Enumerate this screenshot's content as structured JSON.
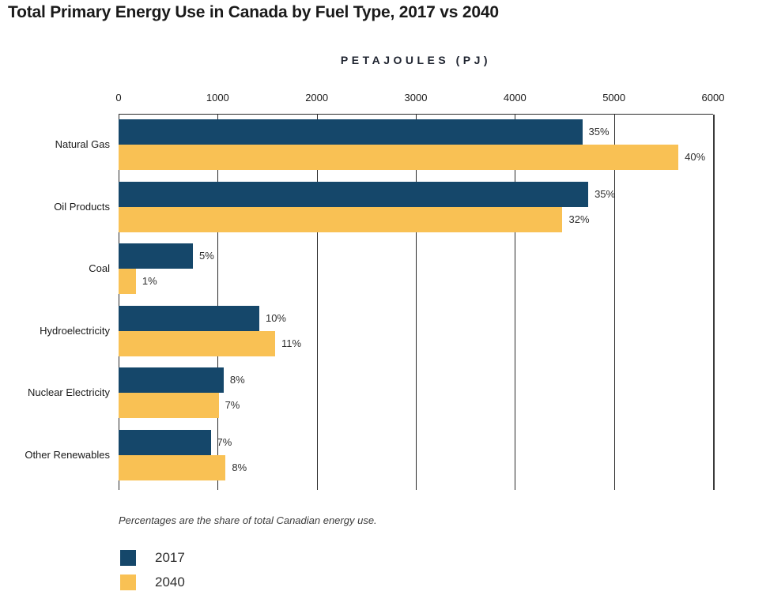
{
  "chart": {
    "title": "Total Primary Energy Use in Canada by Fuel Type, 2017 vs 2040",
    "axis_title": "PETAJOULES (PJ)",
    "footnote": "Percentages are the share of total Canadian energy use."
  },
  "chart_data": {
    "type": "bar",
    "orientation": "horizontal",
    "title": "Total Primary Energy Use in Canada by Fuel Type, 2017 vs 2040",
    "xlabel": "PETAJOULES (PJ)",
    "ylabel": "",
    "xlim": [
      0,
      6000
    ],
    "x_ticks": [
      0,
      1000,
      2000,
      3000,
      4000,
      5000,
      6000
    ],
    "grid": "vertical",
    "legend_position": "bottom-left",
    "categories": [
      "Natural Gas",
      "Oil Products",
      "Coal",
      "Hydroelectricity",
      "Nuclear Electricity",
      "Other Renewables"
    ],
    "series": [
      {
        "name": "2017",
        "color": "#15476a",
        "values": [
          4680,
          4740,
          750,
          1420,
          1060,
          930
        ],
        "labels": [
          "35%",
          "35%",
          "5%",
          "10%",
          "8%",
          "7%"
        ]
      },
      {
        "name": "2040",
        "color": "#f9c154",
        "values": [
          5650,
          4480,
          175,
          1580,
          1010,
          1080
        ],
        "labels": [
          "40%",
          "32%",
          "1%",
          "11%",
          "7%",
          "8%"
        ]
      }
    ],
    "note": "Percentages are the share of total Canadian energy use."
  }
}
